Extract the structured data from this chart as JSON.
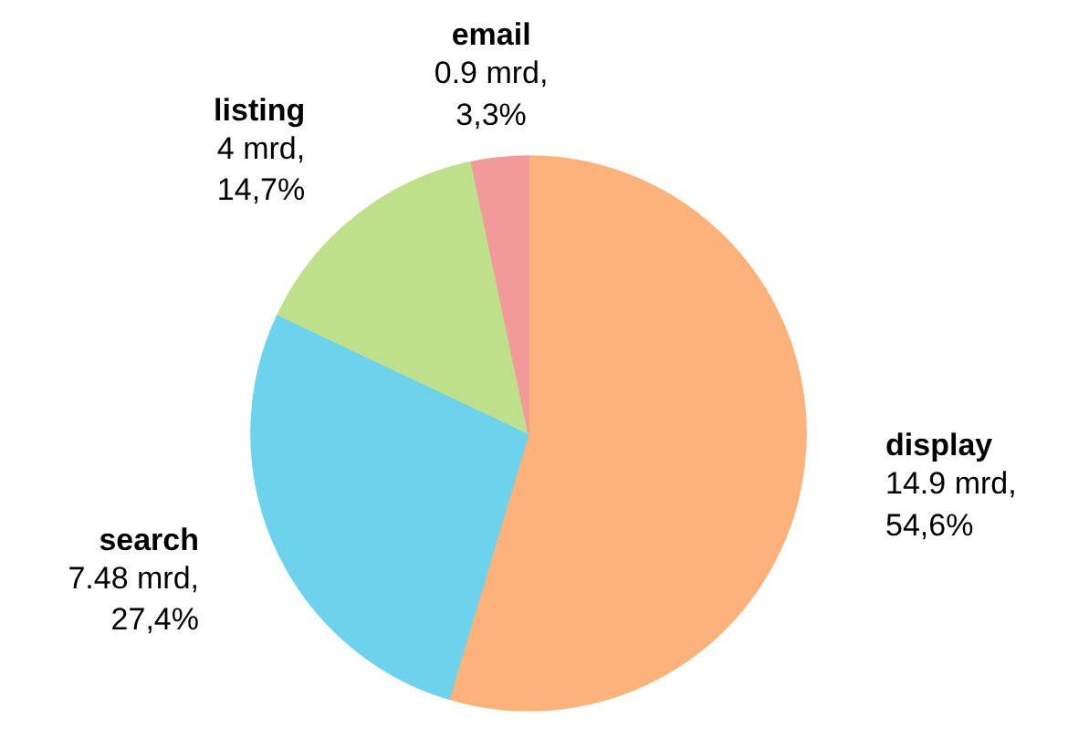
{
  "chart_data": {
    "type": "pie",
    "categories": [
      "display",
      "search",
      "listing",
      "email"
    ],
    "values": [
      14.9,
      7.48,
      4,
      0.9
    ],
    "value_labels": [
      "14.9 mrd,\n54,6%",
      "7.48 mrd,\n27,4%",
      "4 mrd,\n14,7%",
      "0.9 mrd,\n3,3%"
    ],
    "colors": [
      "#fdb27a",
      "#6dd3ec",
      "#bfe08a",
      "#f29a9a"
    ],
    "legend": false
  }
}
